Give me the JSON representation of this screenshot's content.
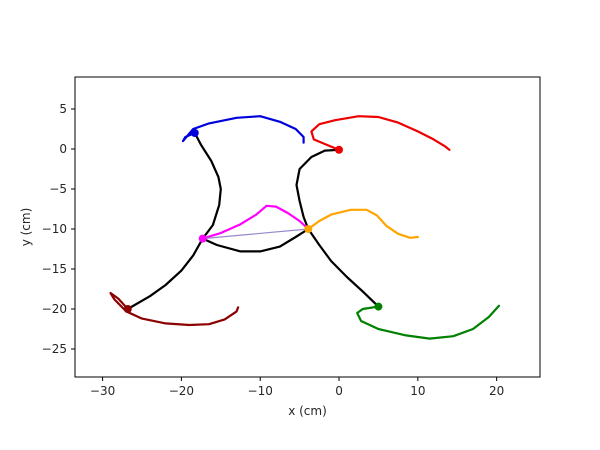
{
  "chart_data": {
    "type": "line",
    "xlabel": "x (cm)",
    "ylabel": "y (cm)",
    "xlim": [
      -33.5,
      25.5
    ],
    "ylim": [
      -28.5,
      9.0
    ],
    "xticks": [
      -30,
      -20,
      -10,
      0,
      10,
      20
    ],
    "yticks": [
      5,
      0,
      -5,
      -10,
      -15,
      -20,
      -25
    ],
    "xtick_labels": [
      "−30",
      "−20",
      "−10",
      "0",
      "10",
      "20"
    ],
    "ytick_labels": [
      "5",
      "0",
      "−5",
      "−10",
      "−15",
      "−20",
      "−25"
    ],
    "grid": false,
    "series": [
      {
        "color": "#000000",
        "points": [
          [
            -18.3,
            2.0
          ],
          [
            -17.5,
            0.5
          ],
          [
            -16.2,
            -1.5
          ],
          [
            -15.3,
            -3.5
          ],
          [
            -15.0,
            -5.0
          ],
          [
            -15.2,
            -7.0
          ],
          [
            -16.0,
            -9.5
          ],
          [
            -17.3,
            -11.2
          ],
          [
            -18.5,
            -13.3
          ],
          [
            -20.0,
            -15.2
          ],
          [
            -22.0,
            -17.0
          ],
          [
            -24.0,
            -18.4
          ],
          [
            -26.8,
            -20.0
          ]
        ]
      },
      {
        "color": "#000000",
        "points": [
          [
            -17.3,
            -11.2
          ],
          [
            -15.5,
            -12.0
          ],
          [
            -12.5,
            -12.8
          ],
          [
            -10.0,
            -12.8
          ],
          [
            -7.5,
            -12.2
          ],
          [
            -5.5,
            -11.0
          ],
          [
            -3.9,
            -10.0
          ],
          [
            -4.5,
            -8.5
          ],
          [
            -5.0,
            -6.5
          ],
          [
            -5.4,
            -4.5
          ],
          [
            -5.0,
            -2.5
          ],
          [
            -3.5,
            -1.0
          ],
          [
            -1.8,
            -0.2
          ],
          [
            0.0,
            -0.1
          ]
        ]
      },
      {
        "color": "#000000",
        "points": [
          [
            -3.9,
            -10.0
          ],
          [
            -2.5,
            -12.0
          ],
          [
            -1.0,
            -14.0
          ],
          [
            1.0,
            -16.0
          ],
          [
            3.0,
            -17.8
          ],
          [
            5.0,
            -19.7
          ]
        ]
      },
      {
        "color": "#0000dd",
        "points": [
          [
            -18.3,
            2.0
          ],
          [
            -19.5,
            1.5
          ],
          [
            -19.8,
            1.0
          ],
          [
            -18.5,
            2.5
          ],
          [
            -16.5,
            3.2
          ],
          [
            -13.0,
            3.9
          ],
          [
            -10.0,
            4.1
          ],
          [
            -7.5,
            3.4
          ],
          [
            -5.5,
            2.5
          ],
          [
            -4.5,
            1.5
          ],
          [
            -4.5,
            0.8
          ]
        ]
      },
      {
        "color": "#ee0000",
        "points": [
          [
            0.0,
            -0.1
          ],
          [
            -1.5,
            0.5
          ],
          [
            -3.2,
            1.2
          ],
          [
            -3.5,
            2.2
          ],
          [
            -2.5,
            3.1
          ],
          [
            -0.5,
            3.6
          ],
          [
            2.5,
            4.1
          ],
          [
            5.0,
            4.0
          ],
          [
            7.5,
            3.3
          ],
          [
            10.0,
            2.2
          ],
          [
            12.0,
            1.2
          ],
          [
            13.5,
            0.3
          ],
          [
            14.0,
            -0.1
          ]
        ]
      },
      {
        "color": "#8b0000",
        "points": [
          [
            -26.8,
            -20.0
          ],
          [
            -28.0,
            -18.7
          ],
          [
            -29.0,
            -18.0
          ],
          [
            -28.5,
            -18.8
          ],
          [
            -27.0,
            -20.3
          ],
          [
            -25.0,
            -21.2
          ],
          [
            -22.0,
            -21.8
          ],
          [
            -19.0,
            -22.0
          ],
          [
            -16.5,
            -21.9
          ],
          [
            -14.5,
            -21.3
          ],
          [
            -13.0,
            -20.3
          ],
          [
            -12.8,
            -19.8
          ]
        ]
      },
      {
        "color": "#008000",
        "points": [
          [
            5.0,
            -19.7
          ],
          [
            3.0,
            -20.0
          ],
          [
            2.3,
            -20.5
          ],
          [
            2.8,
            -21.5
          ],
          [
            5.0,
            -22.5
          ],
          [
            8.5,
            -23.3
          ],
          [
            11.5,
            -23.7
          ],
          [
            14.5,
            -23.4
          ],
          [
            17.0,
            -22.5
          ],
          [
            19.0,
            -21.0
          ],
          [
            20.3,
            -19.6
          ]
        ]
      },
      {
        "color": "#ff00ff",
        "points": [
          [
            -17.3,
            -11.2
          ],
          [
            -15.0,
            -10.5
          ],
          [
            -12.5,
            -9.4
          ],
          [
            -10.5,
            -8.2
          ],
          [
            -9.2,
            -7.1
          ],
          [
            -8.0,
            -7.2
          ],
          [
            -6.5,
            -8.0
          ],
          [
            -5.0,
            -9.0
          ],
          [
            -3.9,
            -10.0
          ]
        ]
      },
      {
        "color": "#ffa500",
        "points": [
          [
            -3.9,
            -10.0
          ],
          [
            -2.5,
            -9.0
          ],
          [
            -1.0,
            -8.2
          ],
          [
            1.5,
            -7.6
          ],
          [
            3.5,
            -7.6
          ],
          [
            4.8,
            -8.3
          ],
          [
            6.0,
            -9.6
          ],
          [
            7.5,
            -10.6
          ],
          [
            9.0,
            -11.1
          ],
          [
            10.0,
            -11.0
          ]
        ]
      },
      {
        "color": "#9988cc",
        "points": [
          [
            -17.3,
            -11.2
          ],
          [
            -3.9,
            -10.0
          ]
        ]
      }
    ],
    "markers": [
      {
        "color": "#0000dd",
        "point": [
          -18.3,
          2.0
        ]
      },
      {
        "color": "#ee0000",
        "point": [
          0.0,
          -0.1
        ]
      },
      {
        "color": "#8b0000",
        "point": [
          -26.8,
          -20.0
        ]
      },
      {
        "color": "#008000",
        "point": [
          5.0,
          -19.7
        ]
      },
      {
        "color": "#ff00ff",
        "point": [
          -17.3,
          -11.2
        ]
      },
      {
        "color": "#ffa500",
        "point": [
          -3.9,
          -10.0
        ]
      }
    ]
  }
}
